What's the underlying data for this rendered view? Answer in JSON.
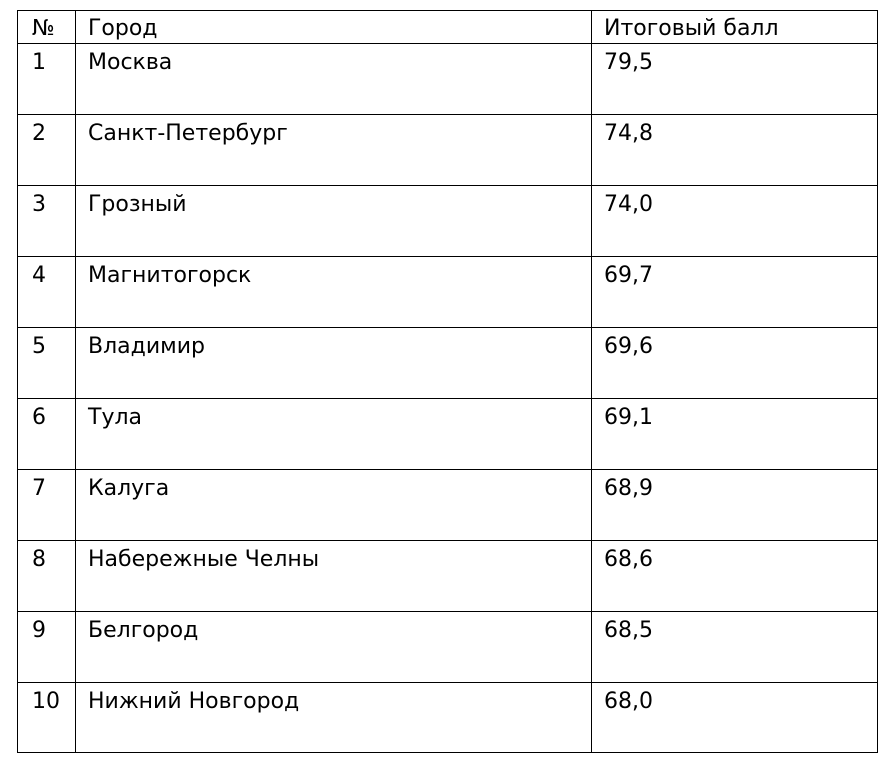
{
  "table": {
    "headers": {
      "num": "№",
      "city": "Город",
      "score": "Итоговый балл"
    },
    "rows": [
      {
        "num": "1",
        "city": "Москва",
        "score": "79,5"
      },
      {
        "num": "2",
        "city": "Санкт-Петербург",
        "score": "74,8"
      },
      {
        "num": "3",
        "city": "Грозный",
        "score": "74,0"
      },
      {
        "num": "4",
        "city": "Магнитогорск",
        "score": "69,7"
      },
      {
        "num": "5",
        "city": "Владимир",
        "score": "69,6"
      },
      {
        "num": "6",
        "city": "Тула",
        "score": "69,1"
      },
      {
        "num": "7",
        "city": "Калуга",
        "score": "68,9"
      },
      {
        "num": "8",
        "city": "Набережные Челны",
        "score": "68,6"
      },
      {
        "num": "9",
        "city": "Белгород",
        "score": "68,5"
      },
      {
        "num": "10",
        "city": "Нижний Новгород",
        "score": "68,0"
      }
    ]
  }
}
